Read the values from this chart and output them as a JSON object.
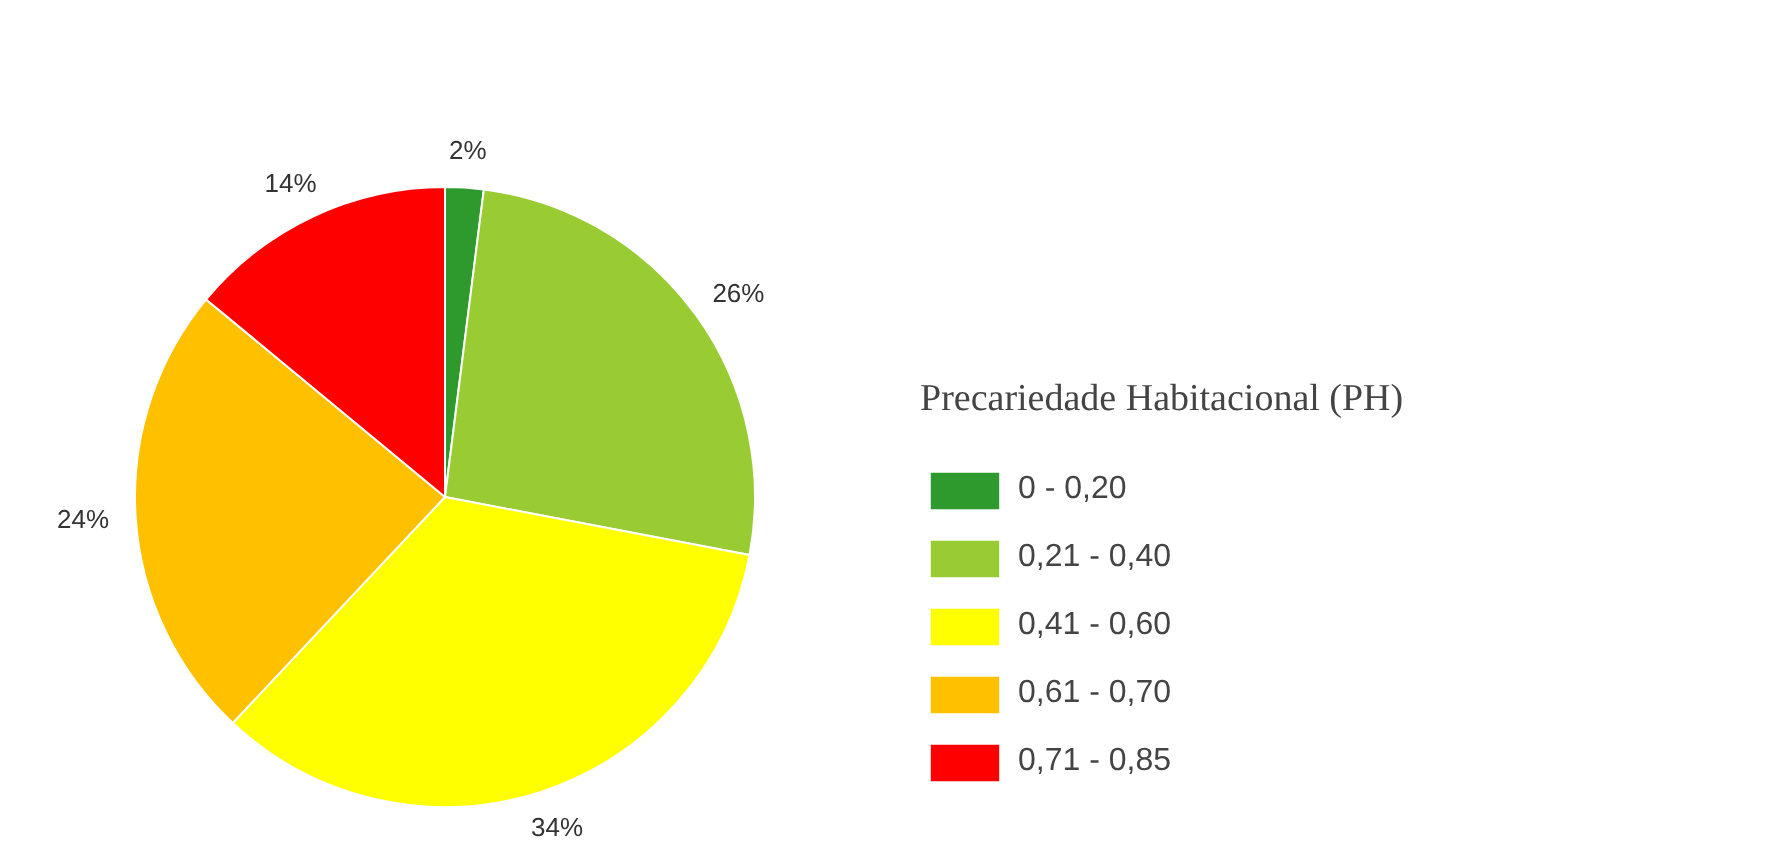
{
  "chart_data": {
    "type": "pie",
    "legend_title": "Precariedade Habitacional (PH)",
    "categories": [
      "0 - 0,20",
      "0,21 - 0,40",
      "0,41 - 0,60",
      "0,61 - 0,70",
      "0,71 - 0,85"
    ],
    "values": [
      2,
      26,
      34,
      24,
      14
    ],
    "value_labels": [
      "2%",
      "26%",
      "34%",
      "24%",
      "14%"
    ],
    "colors": [
      "#2e9a2e",
      "#99cc33",
      "#ffff00",
      "#ffc000",
      "#ff0000"
    ],
    "legend": "right"
  }
}
